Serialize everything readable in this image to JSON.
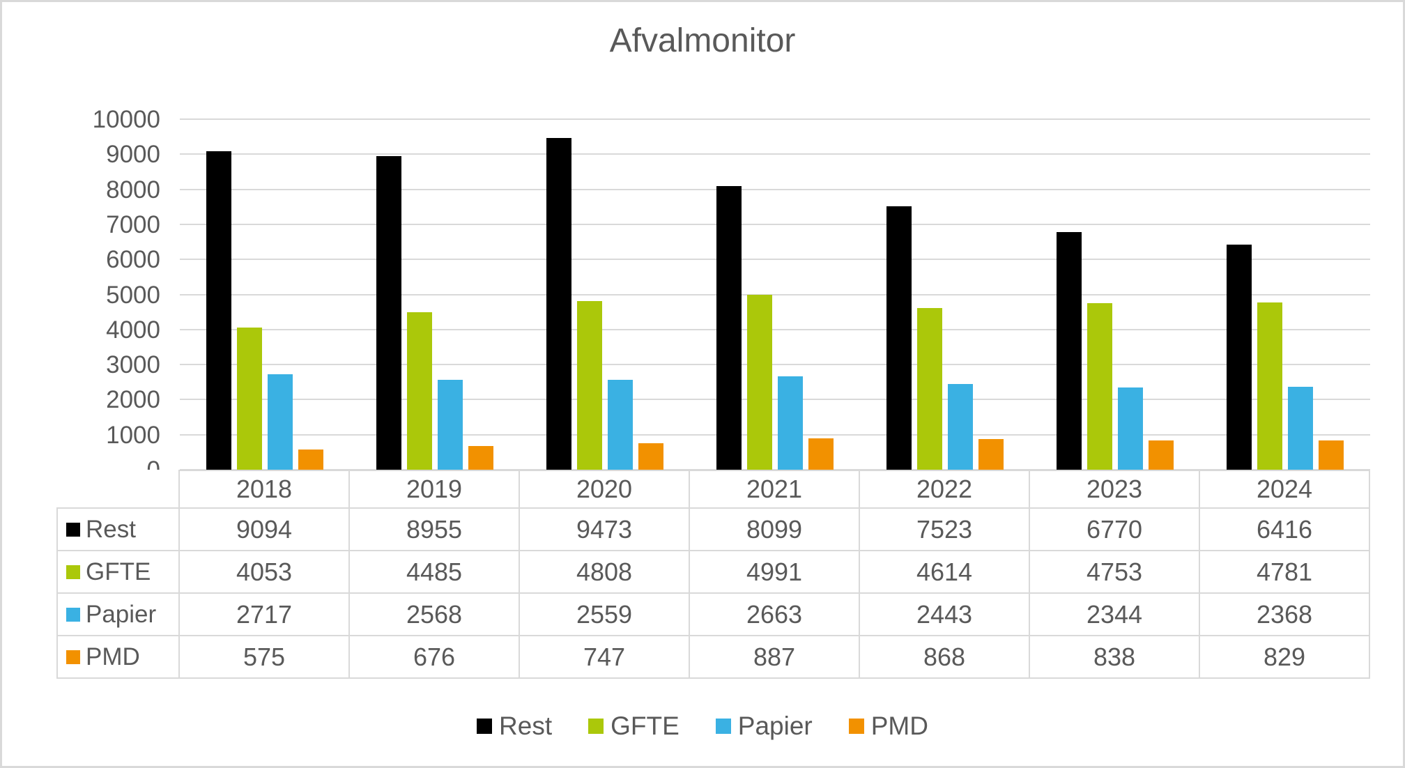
{
  "title": "Afvalmonitor",
  "colors": {
    "rest": "#000000",
    "gfte": "#abc80a",
    "papier": "#3ab1e3",
    "pmd": "#f29100",
    "grid": "#d9d9d9",
    "text": "#595959"
  },
  "chart_data": {
    "type": "bar",
    "title": "Afvalmonitor",
    "categories": [
      "2018",
      "2019",
      "2020",
      "2021",
      "2022",
      "2023",
      "2024"
    ],
    "series": [
      {
        "name": "Rest",
        "color_key": "rest",
        "values": [
          9094,
          8955,
          9473,
          8099,
          7523,
          6770,
          6416
        ]
      },
      {
        "name": "GFTE",
        "color_key": "gfte",
        "values": [
          4053,
          4485,
          4808,
          4991,
          4614,
          4753,
          4781
        ]
      },
      {
        "name": "Papier",
        "color_key": "papier",
        "values": [
          2717,
          2568,
          2559,
          2663,
          2443,
          2344,
          2368
        ]
      },
      {
        "name": "PMD",
        "color_key": "pmd",
        "values": [
          575,
          676,
          747,
          887,
          868,
          838,
          829
        ]
      }
    ],
    "xlabel": "",
    "ylabel": "",
    "ylim": [
      0,
      10000
    ],
    "ytick_step": 1000,
    "y_ticks": [
      "10000",
      "9000",
      "8000",
      "7000",
      "6000",
      "5000",
      "4000",
      "3000",
      "2000",
      "1000",
      "0"
    ],
    "grid": true,
    "legend_position": "bottom",
    "data_table_shown": true
  }
}
